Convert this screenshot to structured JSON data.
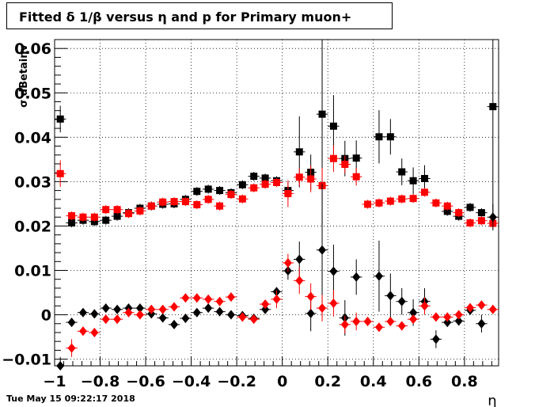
{
  "title": "Fitted δ 1/β versus η and p for Primary muon+",
  "timestamp": "Tue May 15 09:22:17 2018",
  "colors": {
    "series_black": "#000000",
    "series_red": "#ff0000",
    "grid": "#000000"
  },
  "chart_data": {
    "type": "scatter",
    "title": "Fitted δ 1/β versus η and p for Primary muon+",
    "xlabel": "η",
    "ylabel": "σ dBetainv",
    "xlim": [
      -1.0,
      0.95
    ],
    "ylim": [
      -0.0115,
      0.062
    ],
    "grid": true,
    "x_ticks": [
      -1,
      -0.8,
      -0.6,
      -0.4,
      -0.2,
      0,
      0.2,
      0.4,
      0.6,
      0.8
    ],
    "x_tick_labels": [
      "−1",
      "−0.8",
      "−0.6",
      "−0.4",
      "−0.2",
      "0",
      "0.2",
      "0.4",
      "0.6",
      "0.8"
    ],
    "y_ticks": [
      -0.01,
      0,
      0.01,
      0.02,
      0.03,
      0.04,
      0.05,
      0.06
    ],
    "y_tick_labels": [
      "−0.01",
      "0",
      "0.01",
      "0.02",
      "0.03",
      "0.04",
      "0.05",
      "0.06"
    ],
    "x": [
      -0.975,
      -0.925,
      -0.875,
      -0.825,
      -0.775,
      -0.725,
      -0.675,
      -0.625,
      -0.575,
      -0.525,
      -0.475,
      -0.425,
      -0.375,
      -0.325,
      -0.275,
      -0.225,
      -0.175,
      -0.125,
      -0.075,
      -0.025,
      0.025,
      0.075,
      0.125,
      0.175,
      0.225,
      0.275,
      0.325,
      0.375,
      0.425,
      0.475,
      0.525,
      0.575,
      0.625,
      0.675,
      0.725,
      0.775,
      0.825,
      0.875,
      0.925
    ],
    "series": [
      {
        "marker": "square",
        "color": "#000000",
        "values": [
          0.0441,
          0.0207,
          0.0213,
          0.021,
          0.0213,
          0.0222,
          0.023,
          0.024,
          0.0245,
          0.0249,
          0.025,
          0.026,
          0.0278,
          0.0283,
          0.028,
          0.0275,
          0.0293,
          0.0312,
          0.0308,
          0.0302,
          0.028,
          0.0367,
          0.0321,
          0.0452,
          0.0425,
          0.0352,
          0.0353,
          null,
          0.0401,
          0.0401,
          0.0322,
          0.0302,
          0.0307,
          null,
          0.0233,
          0.0222,
          0.0242,
          0.023,
          0.0469
        ],
        "errors": [
          0.003,
          0.001,
          0.001,
          0.001,
          0.001,
          0.001,
          0.001,
          0.001,
          0.001,
          0.001,
          0.001,
          0.001,
          0.001,
          0.001,
          0.001,
          0.001,
          0.001,
          0.001,
          0.001,
          0.001,
          0.002,
          0.008,
          0.004,
          0.025,
          0.007,
          0.004,
          0.004,
          null,
          0.006,
          0.004,
          0.003,
          0.003,
          0.003,
          null,
          0.001,
          0.001,
          0.001,
          0.001,
          0.025
        ]
      },
      {
        "marker": "square",
        "color": "#ff0000",
        "values": [
          0.0318,
          0.0223,
          0.022,
          0.022,
          0.0237,
          0.0237,
          0.0228,
          0.0234,
          0.0245,
          0.0254,
          0.0255,
          0.0255,
          0.0248,
          0.026,
          0.0245,
          0.0271,
          0.0261,
          0.0286,
          0.0294,
          0.0298,
          0.0273,
          0.031,
          0.0306,
          0.0291,
          0.0352,
          0.0339,
          0.0311,
          0.0249,
          0.0252,
          0.0256,
          0.0261,
          0.0262,
          0.0276,
          0.0252,
          0.0245,
          0.023,
          0.0207,
          0.0212,
          0.0206
        ],
        "errors": [
          0.003,
          0.001,
          0.001,
          0.001,
          0.001,
          0.001,
          0.001,
          0.001,
          0.001,
          0.001,
          0.001,
          0.001,
          0.001,
          0.001,
          0.001,
          0.001,
          0.001,
          0.001,
          0.001,
          0.001,
          0.003,
          0.002,
          0.003,
          0.004,
          0.003,
          0.002,
          0.002,
          0.001,
          0.001,
          0.001,
          0.001,
          0.001,
          0.001,
          0.001,
          0.001,
          0.001,
          0.001,
          0.001,
          0.001
        ]
      },
      {
        "marker": "diamond",
        "color": "#000000",
        "values": [
          -0.0115,
          -0.0017,
          0.0005,
          0.0002,
          0.0015,
          0.0012,
          0.0015,
          0.0015,
          0.0002,
          -0.0007,
          -0.0022,
          -0.0008,
          0.0005,
          0.0015,
          0.0007,
          0.0,
          -0.0002,
          -0.0008,
          0.0012,
          0.0052,
          0.0099,
          0.0125,
          0.0003,
          0.0146,
          0.0098,
          -0.0007,
          0.0085,
          null,
          0.0087,
          0.0043,
          0.003,
          0.0005,
          0.003,
          -0.0055,
          -0.0017,
          -0.0014,
          0.001,
          -0.002,
          0.022
        ],
        "errors": [
          0.002,
          0.001,
          0.001,
          0.001,
          0.001,
          0.001,
          0.001,
          0.001,
          0.001,
          0.001,
          0.001,
          0.001,
          0.001,
          0.001,
          0.001,
          0.001,
          0.001,
          0.001,
          0.001,
          0.001,
          0.002,
          0.004,
          0.004,
          0.015,
          0.006,
          0.004,
          0.004,
          null,
          0.008,
          0.005,
          0.003,
          0.003,
          0.003,
          0.002,
          0.001,
          0.001,
          0.001,
          0.002,
          0.003
        ]
      },
      {
        "marker": "diamond",
        "color": "#ff0000",
        "values": [
          null,
          -0.0075,
          -0.0037,
          -0.004,
          -0.001,
          -0.001,
          0.0005,
          0.0,
          0.0012,
          0.0012,
          0.0018,
          0.0038,
          0.0038,
          0.0035,
          0.003,
          0.004,
          -0.0005,
          -0.001,
          0.0024,
          0.0035,
          0.0117,
          0.0077,
          0.0041,
          0.0015,
          0.0026,
          -0.0022,
          -0.0015,
          -0.0015,
          -0.0028,
          -0.0015,
          -0.0025,
          -0.001,
          0.002,
          -0.0005,
          -0.0005,
          0.0,
          0.0016,
          0.0022,
          0.0012
        ],
        "errors": [
          null,
          0.002,
          0.001,
          0.001,
          0.001,
          0.001,
          0.001,
          0.001,
          0.001,
          0.001,
          0.001,
          0.001,
          0.001,
          0.001,
          0.001,
          0.001,
          0.001,
          0.001,
          0.001,
          0.002,
          0.002,
          0.003,
          0.003,
          0.003,
          0.003,
          0.002,
          0.002,
          0.001,
          0.001,
          0.001,
          0.001,
          0.001,
          0.002,
          0.001,
          0.001,
          0.001,
          0.001,
          0.001,
          0.001
        ]
      }
    ]
  }
}
